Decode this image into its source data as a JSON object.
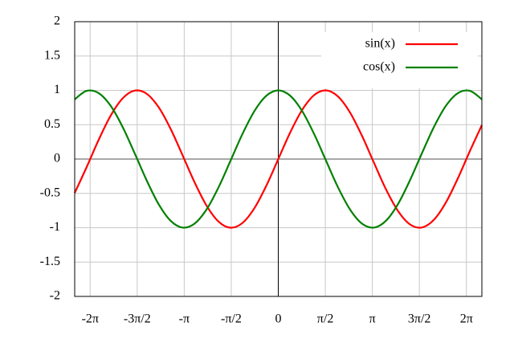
{
  "chart_data": {
    "type": "line",
    "x": [
      -6.8,
      -6.4,
      -6.0,
      -5.6,
      -5.2,
      -4.8,
      -4.4,
      -4.0,
      -3.6,
      -3.2,
      -2.8,
      -2.4,
      -2.0,
      -1.6,
      -1.2,
      -0.8,
      -0.4,
      0,
      0.4,
      0.8,
      1.2,
      1.6,
      2.0,
      2.4,
      2.8,
      3.2,
      3.6,
      4.0,
      4.4,
      4.8,
      5.2,
      5.6,
      6.0,
      6.4,
      6.8
    ],
    "series": [
      {
        "name": "sin(x)",
        "color": "#ff0000",
        "values": [
          -0.494,
          -0.117,
          0.279,
          0.631,
          0.883,
          0.996,
          0.952,
          0.757,
          0.443,
          0.058,
          -0.335,
          -0.675,
          -0.909,
          -1.0,
          -0.932,
          -0.717,
          -0.389,
          0,
          0.389,
          0.717,
          0.932,
          1.0,
          0.909,
          0.675,
          0.335,
          -0.058,
          -0.443,
          -0.757,
          -0.952,
          -0.996,
          -0.883,
          -0.631,
          -0.279,
          0.117,
          0.494
        ]
      },
      {
        "name": "cos(x)",
        "color": "#008000",
        "values": [
          0.869,
          0.993,
          0.96,
          0.776,
          0.468,
          0.087,
          -0.307,
          -0.654,
          -0.897,
          -0.998,
          -0.942,
          -0.737,
          -0.416,
          -0.029,
          0.362,
          0.697,
          0.921,
          1,
          0.921,
          0.697,
          0.362,
          -0.029,
          -0.416,
          -0.737,
          -0.942,
          -0.998,
          -0.897,
          -0.654,
          -0.307,
          0.087,
          0.468,
          0.776,
          0.96,
          0.993,
          0.869
        ]
      }
    ],
    "xlim": [
      -6.8,
      6.8
    ],
    "ylim": [
      -2,
      2
    ],
    "xticks": [
      {
        "value": -6.283,
        "label": "-2π"
      },
      {
        "value": -4.712,
        "label": "-3π/2"
      },
      {
        "value": -3.142,
        "label": "-π"
      },
      {
        "value": -1.571,
        "label": "-π/2"
      },
      0,
      {
        "value": 1.571,
        "label": "π/2"
      },
      {
        "value": 3.142,
        "label": "π"
      },
      {
        "value": 4.712,
        "label": "3π/2"
      },
      {
        "value": 6.283,
        "label": "2π"
      }
    ],
    "yticks": [
      -2,
      -1.5,
      -1,
      -0.5,
      0,
      0.5,
      1,
      1.5,
      2
    ],
    "grid": true,
    "zero_axes": true,
    "legend": "top-right"
  }
}
